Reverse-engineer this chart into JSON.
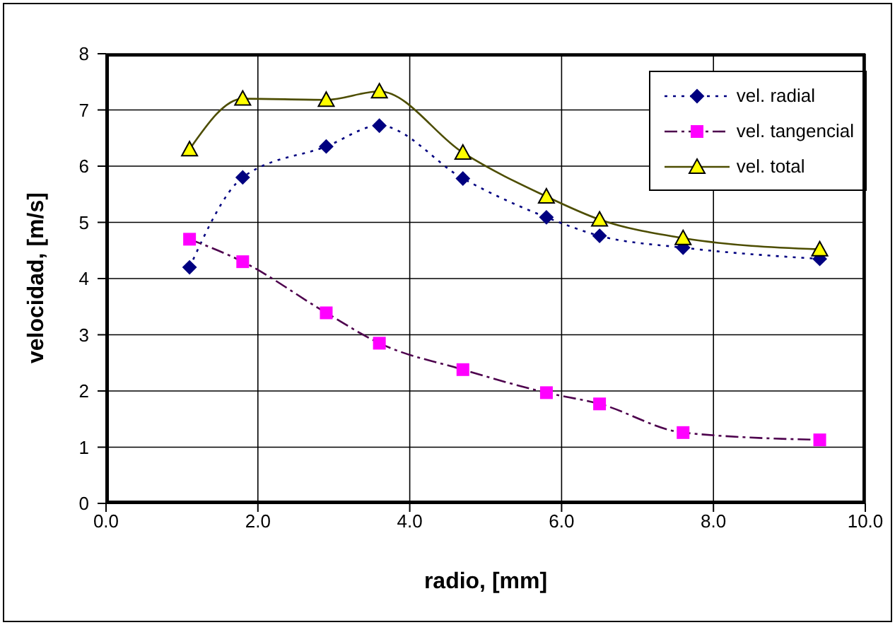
{
  "chart_data": {
    "type": "line",
    "xlabel": "radio, [mm]",
    "ylabel": "velocidad, [m/s]",
    "xlim": [
      0,
      10
    ],
    "xticks": [
      {
        "value": 0,
        "label": "0.0"
      },
      {
        "value": 2,
        "label": "2.0"
      },
      {
        "value": 4,
        "label": "4.0"
      },
      {
        "value": 6,
        "label": "6.0"
      },
      {
        "value": 8,
        "label": "8.0"
      },
      {
        "value": 10,
        "label": "10.0"
      }
    ],
    "ylim": [
      0,
      8
    ],
    "yticks": [
      0,
      1,
      2,
      3,
      4,
      5,
      6,
      7,
      8
    ],
    "grid": true,
    "legend": "top right",
    "x": [
      1.1,
      1.8,
      2.9,
      3.6,
      4.7,
      5.8,
      6.5,
      7.6,
      9.4
    ],
    "series": [
      {
        "name": "vel. radial",
        "color": "#000080",
        "marker": "diamond",
        "line_style": "dotted",
        "values": [
          4.2,
          5.8,
          6.35,
          6.72,
          5.78,
          5.09,
          4.76,
          4.55,
          4.35
        ]
      },
      {
        "name": "vel. tangencial",
        "color": "#ff00ff",
        "marker": "square",
        "line_style": "dashed",
        "values": [
          4.7,
          4.3,
          3.39,
          2.85,
          2.38,
          1.97,
          1.77,
          1.26,
          1.13
        ]
      },
      {
        "name": "vel. total",
        "color": "#ffff00",
        "marker": "triangle",
        "line_style": "solid",
        "values": [
          6.3,
          7.2,
          7.18,
          7.33,
          6.24,
          5.46,
          5.05,
          4.72,
          4.52
        ]
      }
    ]
  }
}
